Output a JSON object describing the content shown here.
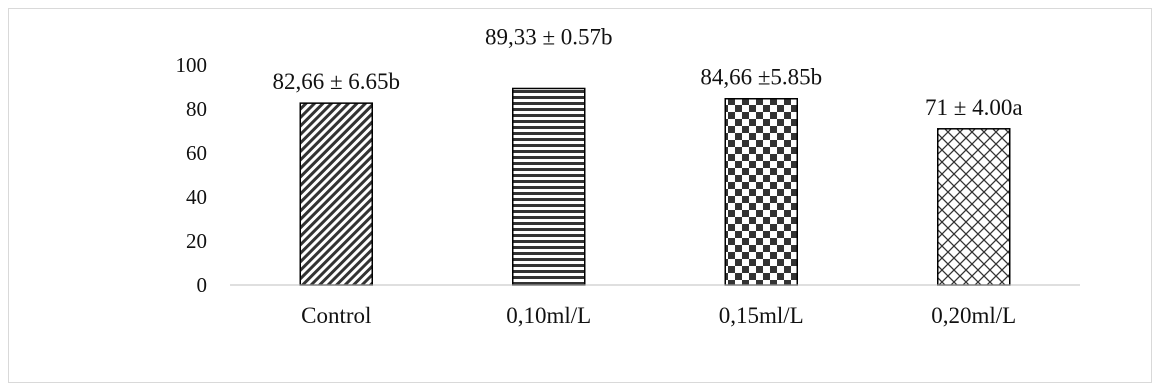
{
  "chart_data": {
    "type": "bar",
    "title": "",
    "xlabel": "",
    "ylabel": "",
    "ylim": [
      0,
      100
    ],
    "yticks": [
      0,
      20,
      40,
      60,
      80,
      100
    ],
    "grid": false,
    "categories": [
      "Control",
      "0,10ml/L",
      "0,15ml/L",
      "0,20ml/L"
    ],
    "values": [
      82.66,
      89.33,
      84.66,
      71
    ],
    "data_labels": [
      "82,66 ± 6.65b",
      "89,33 ± 0.57b",
      "84,66 ±5.85b",
      "71 ± 4.00a"
    ],
    "patterns": [
      "diagonal-stripes",
      "horizontal-stripes",
      "checkerboard",
      "diagonal-crosshatch"
    ],
    "colors": {
      "bar_fill": "#ffffff",
      "pattern": "#333333",
      "bar_border": "#000000",
      "axis": "#bfbfbf",
      "text": "#111111"
    }
  }
}
